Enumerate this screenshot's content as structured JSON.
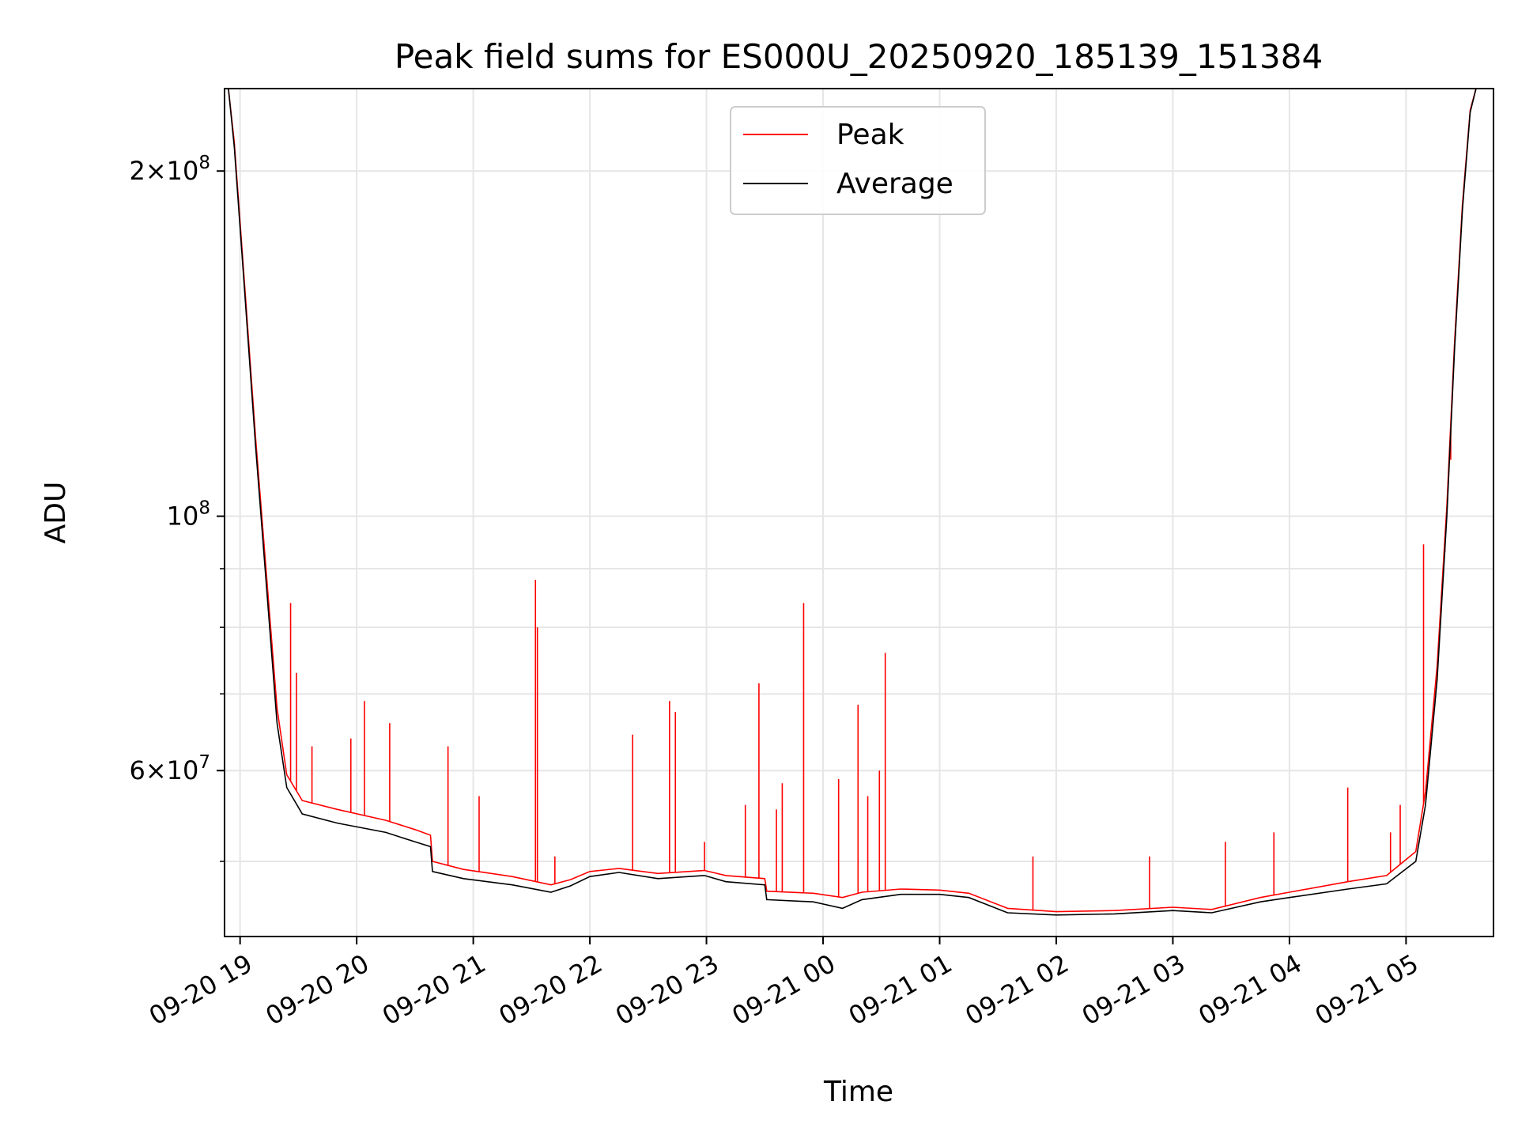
{
  "chart_data": {
    "type": "line",
    "title": "Peak field sums for ES000U_20250920_185139_151384",
    "xlabel": "Time",
    "ylabel": "ADU",
    "y_scale": "log",
    "ylim": [
      43000000,
      236000000
    ],
    "xlim": [
      "2025-09-20 18:52",
      "2025-09-21 05:45"
    ],
    "grid": true,
    "legend_position": "top-center",
    "x_ticks": [
      "09-20 19",
      "09-20 20",
      "09-20 21",
      "09-20 22",
      "09-20 23",
      "09-21 00",
      "09-21 01",
      "09-21 02",
      "09-21 03",
      "09-21 04",
      "09-21 05"
    ],
    "x_tick_times": [
      "2025-09-20 19:00",
      "2025-09-20 20:00",
      "2025-09-20 21:00",
      "2025-09-20 22:00",
      "2025-09-20 23:00",
      "2025-09-21 00:00",
      "2025-09-21 01:00",
      "2025-09-21 02:00",
      "2025-09-21 03:00",
      "2025-09-21 04:00",
      "2025-09-21 05:00"
    ],
    "y_major_ticks": [
      {
        "value": 60000000,
        "mantissa": "6",
        "exponent": "7"
      },
      {
        "value": 100000000,
        "mantissa": "",
        "exponent": "8"
      },
      {
        "value": 200000000,
        "mantissa": "2",
        "exponent": "8"
      }
    ],
    "y_minor_ticks": [
      50000000,
      70000000,
      80000000,
      90000000
    ],
    "series": [
      {
        "name": "Average",
        "color": "#000000",
        "points": [
          [
            "2025-09-20 18:52",
            236000000
          ],
          [
            "2025-09-20 18:54",
            236000000
          ],
          [
            "2025-09-20 18:57",
            210000000
          ],
          [
            "2025-09-20 19:02",
            160000000
          ],
          [
            "2025-09-20 19:08",
            115000000
          ],
          [
            "2025-09-20 19:14",
            85000000
          ],
          [
            "2025-09-20 19:19",
            66000000
          ],
          [
            "2025-09-20 19:24",
            58000000
          ],
          [
            "2025-09-20 19:32",
            55000000
          ],
          [
            "2025-09-20 19:50",
            54000000
          ],
          [
            "2025-09-20 20:15",
            53000000
          ],
          [
            "2025-09-20 20:30",
            52000000
          ],
          [
            "2025-09-20 20:38",
            51500000
          ],
          [
            "2025-09-20 20:39",
            49000000
          ],
          [
            "2025-09-20 20:55",
            48300000
          ],
          [
            "2025-09-20 21:20",
            47700000
          ],
          [
            "2025-09-20 21:40",
            47000000
          ],
          [
            "2025-09-20 21:50",
            47600000
          ],
          [
            "2025-09-20 22:00",
            48500000
          ],
          [
            "2025-09-20 22:15",
            48900000
          ],
          [
            "2025-09-20 22:35",
            48300000
          ],
          [
            "2025-09-20 22:59",
            48600000
          ],
          [
            "2025-09-20 23:10",
            48000000
          ],
          [
            "2025-09-20 23:30",
            47700000
          ],
          [
            "2025-09-20 23:31",
            46300000
          ],
          [
            "2025-09-20 23:55",
            46100000
          ],
          [
            "2025-09-21 00:10",
            45500000
          ],
          [
            "2025-09-21 00:20",
            46300000
          ],
          [
            "2025-09-21 00:40",
            46800000
          ],
          [
            "2025-09-21 01:00",
            46800000
          ],
          [
            "2025-09-21 01:15",
            46500000
          ],
          [
            "2025-09-21 01:35",
            45100000
          ],
          [
            "2025-09-21 02:00",
            44900000
          ],
          [
            "2025-09-21 02:30",
            45000000
          ],
          [
            "2025-09-21 03:00",
            45300000
          ],
          [
            "2025-09-21 03:20",
            45100000
          ],
          [
            "2025-09-21 03:45",
            46100000
          ],
          [
            "2025-09-21 04:00",
            46500000
          ],
          [
            "2025-09-21 04:30",
            47300000
          ],
          [
            "2025-09-21 04:50",
            47800000
          ],
          [
            "2025-09-21 05:05",
            50000000
          ],
          [
            "2025-09-21 05:10",
            56000000
          ],
          [
            "2025-09-21 05:16",
            72000000
          ],
          [
            "2025-09-21 05:21",
            100000000
          ],
          [
            "2025-09-21 05:25",
            140000000
          ],
          [
            "2025-09-21 05:29",
            185000000
          ],
          [
            "2025-09-21 05:33",
            225000000
          ],
          [
            "2025-09-21 05:36",
            236000000
          ],
          [
            "2025-09-21 05:45",
            236000000
          ]
        ]
      },
      {
        "name": "Peak",
        "color": "#ff0000",
        "points": [
          [
            "2025-09-20 18:52",
            236000000
          ],
          [
            "2025-09-20 18:54",
            236000000
          ],
          [
            "2025-09-20 18:57",
            212000000
          ],
          [
            "2025-09-20 19:02",
            162000000
          ],
          [
            "2025-09-20 19:08",
            117000000
          ],
          [
            "2025-09-20 19:14",
            87000000
          ],
          [
            "2025-09-20 19:19",
            68000000
          ],
          [
            "2025-09-20 19:24",
            59500000
          ],
          [
            "2025-09-20 19:32",
            56500000
          ],
          [
            "2025-09-20 19:50",
            55500000
          ],
          [
            "2025-09-20 20:15",
            54300000
          ],
          [
            "2025-09-20 20:30",
            53300000
          ],
          [
            "2025-09-20 20:38",
            52700000
          ],
          [
            "2025-09-20 20:39",
            50000000
          ],
          [
            "2025-09-20 20:55",
            49200000
          ],
          [
            "2025-09-20 21:20",
            48500000
          ],
          [
            "2025-09-20 21:40",
            47700000
          ],
          [
            "2025-09-20 21:50",
            48200000
          ],
          [
            "2025-09-20 22:00",
            49000000
          ],
          [
            "2025-09-20 22:15",
            49300000
          ],
          [
            "2025-09-20 22:35",
            48800000
          ],
          [
            "2025-09-20 22:59",
            49100000
          ],
          [
            "2025-09-20 23:10",
            48600000
          ],
          [
            "2025-09-20 23:30",
            48300000
          ],
          [
            "2025-09-20 23:31",
            47100000
          ],
          [
            "2025-09-20 23:55",
            46900000
          ],
          [
            "2025-09-21 00:10",
            46500000
          ],
          [
            "2025-09-21 00:20",
            47000000
          ],
          [
            "2025-09-21 00:40",
            47300000
          ],
          [
            "2025-09-21 01:00",
            47200000
          ],
          [
            "2025-09-21 01:15",
            46900000
          ],
          [
            "2025-09-21 01:35",
            45500000
          ],
          [
            "2025-09-21 02:00",
            45200000
          ],
          [
            "2025-09-21 02:30",
            45300000
          ],
          [
            "2025-09-21 03:00",
            45600000
          ],
          [
            "2025-09-21 03:20",
            45400000
          ],
          [
            "2025-09-21 03:45",
            46500000
          ],
          [
            "2025-09-21 04:00",
            47000000
          ],
          [
            "2025-09-21 04:30",
            48000000
          ],
          [
            "2025-09-21 04:50",
            48600000
          ],
          [
            "2025-09-21 05:05",
            51000000
          ],
          [
            "2025-09-21 05:10",
            57500000
          ],
          [
            "2025-09-21 05:16",
            74000000
          ],
          [
            "2025-09-21 05:21",
            102000000
          ],
          [
            "2025-09-21 05:25",
            142000000
          ],
          [
            "2025-09-21 05:29",
            187000000
          ],
          [
            "2025-09-21 05:33",
            226000000
          ],
          [
            "2025-09-21 05:36",
            236000000
          ],
          [
            "2025-09-21 05:45",
            236000000
          ]
        ],
        "spikes": [
          [
            "2025-09-20 19:26",
            84000000
          ],
          [
            "2025-09-20 19:29",
            73000000
          ],
          [
            "2025-09-20 19:37",
            63000000
          ],
          [
            "2025-09-20 19:57",
            64000000
          ],
          [
            "2025-09-20 20:04",
            69000000
          ],
          [
            "2025-09-20 20:17",
            66000000
          ],
          [
            "2025-09-20 20:47",
            63000000
          ],
          [
            "2025-09-20 21:03",
            57000000
          ],
          [
            "2025-09-20 21:32",
            88000000
          ],
          [
            "2025-09-20 21:33",
            80000000
          ],
          [
            "2025-09-20 21:42",
            50500000
          ],
          [
            "2025-09-20 22:22",
            64500000
          ],
          [
            "2025-09-20 22:41",
            69000000
          ],
          [
            "2025-09-20 22:44",
            67500000
          ],
          [
            "2025-09-20 22:59",
            52000000
          ],
          [
            "2025-09-20 23:20",
            56000000
          ],
          [
            "2025-09-20 23:27",
            71500000
          ],
          [
            "2025-09-20 23:36",
            55500000
          ],
          [
            "2025-09-20 23:39",
            58500000
          ],
          [
            "2025-09-20 23:50",
            84000000
          ],
          [
            "2025-09-21 00:08",
            59000000
          ],
          [
            "2025-09-21 00:18",
            68500000
          ],
          [
            "2025-09-21 00:23",
            57000000
          ],
          [
            "2025-09-21 00:29",
            60000000
          ],
          [
            "2025-09-21 00:32",
            76000000
          ],
          [
            "2025-09-21 01:48",
            50500000
          ],
          [
            "2025-09-21 02:48",
            50500000
          ],
          [
            "2025-09-21 03:27",
            52000000
          ],
          [
            "2025-09-21 03:52",
            53000000
          ],
          [
            "2025-09-21 04:30",
            58000000
          ],
          [
            "2025-09-21 04:52",
            53000000
          ],
          [
            "2025-09-21 04:57",
            56000000
          ],
          [
            "2025-09-21 05:09",
            94500000
          ],
          [
            "2025-09-21 05:20",
            93000000
          ],
          [
            "2025-09-21 05:23",
            112000000
          ]
        ]
      }
    ]
  }
}
